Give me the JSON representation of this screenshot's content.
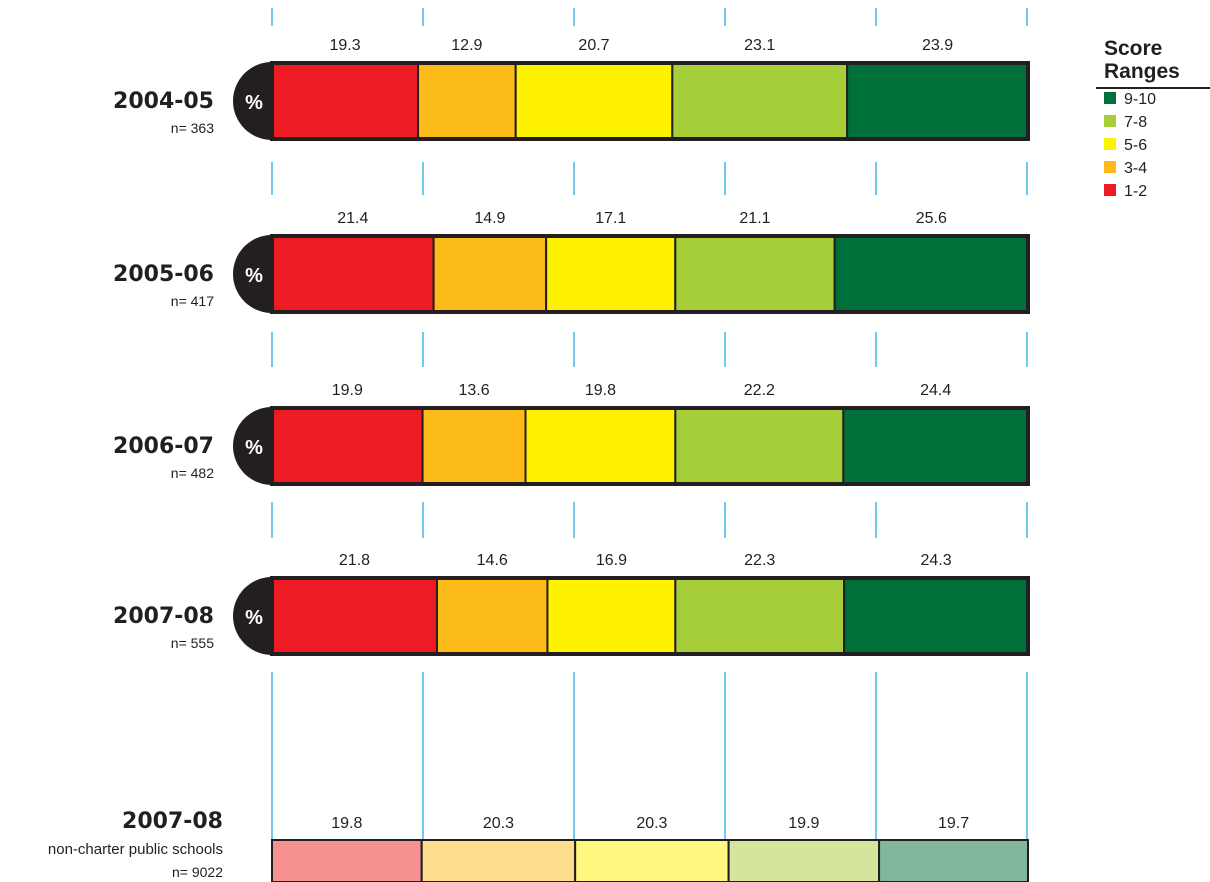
{
  "chart_data": {
    "type": "bar",
    "subtype": "stacked-percent-horizontal",
    "unit_badge": "%",
    "legend": {
      "title_line1": "Score",
      "title_line2": "Ranges",
      "placement": "top-right",
      "items": [
        {
          "label": "9-10",
          "color": "#00703a"
        },
        {
          "label": "7-8",
          "color": "#a6ce39"
        },
        {
          "label": "5-6",
          "color": "#fff200"
        },
        {
          "label": "3-4",
          "color": "#fdbb1a"
        },
        {
          "label": "1-2",
          "color": "#ed1c24"
        }
      ]
    },
    "segment_colors": [
      "#ed1c24",
      "#fdbb1a",
      "#fff200",
      "#a6ce39",
      "#00703a"
    ],
    "comparison_colors": [
      "#f69192",
      "#fedd8c",
      "#fff77f",
      "#d3e69c",
      "#80b79d"
    ],
    "rows": [
      {
        "period": "2004-05",
        "n_label": "n= 363",
        "values": [
          19.3,
          12.9,
          20.7,
          23.1,
          23.9
        ]
      },
      {
        "period": "2005-06",
        "n_label": "n= 417",
        "values": [
          21.4,
          14.9,
          17.1,
          21.1,
          25.6
        ]
      },
      {
        "period": "2006-07",
        "n_label": "n= 482",
        "values": [
          19.9,
          13.6,
          19.8,
          22.2,
          24.4
        ]
      },
      {
        "period": "2007-08",
        "n_label": "n= 555",
        "values": [
          21.8,
          14.6,
          16.9,
          22.3,
          24.3
        ]
      }
    ],
    "comparison": {
      "period": "2007-08",
      "group_label": "non-charter public schools",
      "n_label": "n= 9022",
      "values": [
        19.8,
        20.3,
        20.3,
        19.9,
        19.7
      ]
    },
    "grid": true,
    "grid_color": "#29abe2"
  }
}
